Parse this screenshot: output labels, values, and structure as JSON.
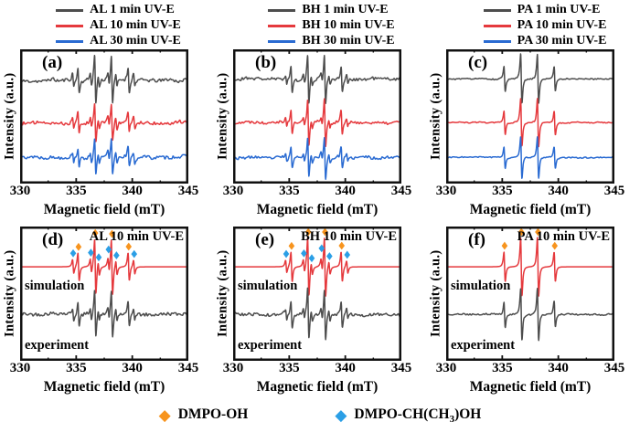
{
  "chart_data": {
    "type": "line",
    "xlabel": "Magnetic field (mT)",
    "ylabel": "Intensity (a.u.)",
    "x_range": [
      330,
      345
    ],
    "x_ticks": [
      "330",
      "335",
      "340",
      "345"
    ],
    "x_minor_ticks": [
      332.5,
      337.5,
      342.5
    ],
    "linewidth_mT": 0.1,
    "species": {
      "dmpo_oh": {
        "name": "DMPO-OH",
        "lines_mT": [
          335.21,
          336.7,
          338.19,
          339.68
        ],
        "weights": [
          1,
          2,
          2,
          1
        ],
        "marker_color": "#f7941e"
      },
      "dmpo_ch": {
        "name": "DMPO-CH(CH3)OH",
        "lines_mT": [
          334.73,
          336.31,
          337.01,
          337.89,
          338.59,
          340.17
        ],
        "weights": [
          1,
          1,
          1,
          1,
          1,
          1
        ],
        "marker_color": "#2b9fe6"
      }
    },
    "panels": [
      {
        "label": "(a)",
        "legend": [
          {
            "text": "AL 1 min UV-E",
            "color": "#4d4d4d"
          },
          {
            "text": "AL 10 min UV-E",
            "color": "#e5393d"
          },
          {
            "text": "AL 30 min UV-E",
            "color": "#2a6bd2"
          }
        ],
        "traces": [
          {
            "name": "AL 1 min UV-E",
            "color": "#4d4d4d",
            "baseline": 0.23,
            "amp": 27,
            "oh": 1,
            "ch": 0.5,
            "noise": 0.1,
            "seed": 11
          },
          {
            "name": "AL 10 min UV-E",
            "color": "#e5393d",
            "baseline": 0.545,
            "amp": 21,
            "oh": 1,
            "ch": 0.55,
            "noise": 0.13,
            "seed": 12
          },
          {
            "name": "AL 30 min UV-E",
            "color": "#2a6bd2",
            "baseline": 0.805,
            "amp": 20,
            "oh": 1,
            "ch": 0.55,
            "noise": 0.13,
            "seed": 13
          }
        ]
      },
      {
        "label": "(b)",
        "legend": [
          {
            "text": "BH 1 min UV-E",
            "color": "#4d4d4d"
          },
          {
            "text": "BH 10 min UV-E",
            "color": "#e5393d"
          },
          {
            "text": "BH 30 min UV-E",
            "color": "#2a6bd2"
          }
        ],
        "traces": [
          {
            "name": "BH 1 min UV-E",
            "color": "#4d4d4d",
            "baseline": 0.22,
            "amp": 27,
            "oh": 1,
            "ch": 0.35,
            "noise": 0.09,
            "seed": 21
          },
          {
            "name": "BH 10 min UV-E",
            "color": "#e5393d",
            "baseline": 0.545,
            "amp": 26,
            "oh": 1,
            "ch": 0.35,
            "noise": 0.09,
            "seed": 22
          },
          {
            "name": "BH 30 min UV-E",
            "color": "#2a6bd2",
            "baseline": 0.805,
            "amp": 22,
            "oh": 1,
            "ch": 0.4,
            "noise": 0.1,
            "seed": 23
          }
        ]
      },
      {
        "label": "(c)",
        "legend": [
          {
            "text": "PA 1 min UV-E",
            "color": "#4d4d4d"
          },
          {
            "text": "PA 10 min UV-E",
            "color": "#e5393d"
          },
          {
            "text": "PA 30 min UV-E",
            "color": "#2a6bd2"
          }
        ],
        "traces": [
          {
            "name": "PA 1 min UV-E",
            "color": "#4d4d4d",
            "baseline": 0.22,
            "amp": 27,
            "oh": 1,
            "ch": 0,
            "noise": 0.035,
            "seed": 31
          },
          {
            "name": "PA 10 min UV-E",
            "color": "#e5393d",
            "baseline": 0.545,
            "amp": 26,
            "oh": 1,
            "ch": 0,
            "noise": 0.035,
            "seed": 32
          },
          {
            "name": "PA 30 min UV-E",
            "color": "#2a6bd2",
            "baseline": 0.805,
            "amp": 23,
            "oh": 1,
            "ch": 0,
            "noise": 0.04,
            "seed": 33
          }
        ]
      },
      {
        "label": "(d)",
        "title": "AL 10 min UV-E",
        "traces": [
          {
            "name": "simulation",
            "text_label": "simulation",
            "color": "#e5393d",
            "baseline": 0.3,
            "amp": 30,
            "oh": 1,
            "ch": 0.5,
            "noise": 0,
            "seed": 41,
            "markers": [
              "dmpo_oh",
              "dmpo_ch"
            ]
          },
          {
            "name": "experiment",
            "text_label": "experiment",
            "color": "#4d4d4d",
            "baseline": 0.655,
            "amp": 26,
            "oh": 1,
            "ch": 0.5,
            "noise": 0.1,
            "seed": 42
          }
        ]
      },
      {
        "label": "(e)",
        "title": "BH 10 min UV-E",
        "traces": [
          {
            "name": "simulation",
            "text_label": "simulation",
            "color": "#e5393d",
            "baseline": 0.3,
            "amp": 32,
            "oh": 1,
            "ch": 0.42,
            "noise": 0,
            "seed": 51,
            "markers": [
              "dmpo_oh",
              "dmpo_ch"
            ]
          },
          {
            "name": "experiment",
            "text_label": "experiment",
            "color": "#4d4d4d",
            "baseline": 0.655,
            "amp": 28,
            "oh": 1,
            "ch": 0.42,
            "noise": 0.08,
            "seed": 52
          }
        ]
      },
      {
        "label": "(f)",
        "title": "PA 10 min UV-E",
        "traces": [
          {
            "name": "simulation",
            "text_label": "simulation",
            "color": "#e5393d",
            "baseline": 0.3,
            "amp": 32,
            "oh": 1,
            "ch": 0,
            "noise": 0,
            "seed": 61,
            "markers": [
              "dmpo_oh"
            ]
          },
          {
            "name": "experiment",
            "text_label": "experiment",
            "color": "#4d4d4d",
            "baseline": 0.655,
            "amp": 28,
            "oh": 1,
            "ch": 0,
            "noise": 0.04,
            "seed": 62
          }
        ]
      }
    ]
  },
  "bottom_legend": [
    {
      "symbol": "diamond-icon",
      "color": "#f7941e",
      "pre": "DMPO-OH",
      "sub": "",
      "post": ""
    },
    {
      "symbol": "diamond-icon",
      "color": "#2b9fe6",
      "pre": "DMPO-CH(CH",
      "sub": "3",
      "post": ")OH"
    }
  ]
}
